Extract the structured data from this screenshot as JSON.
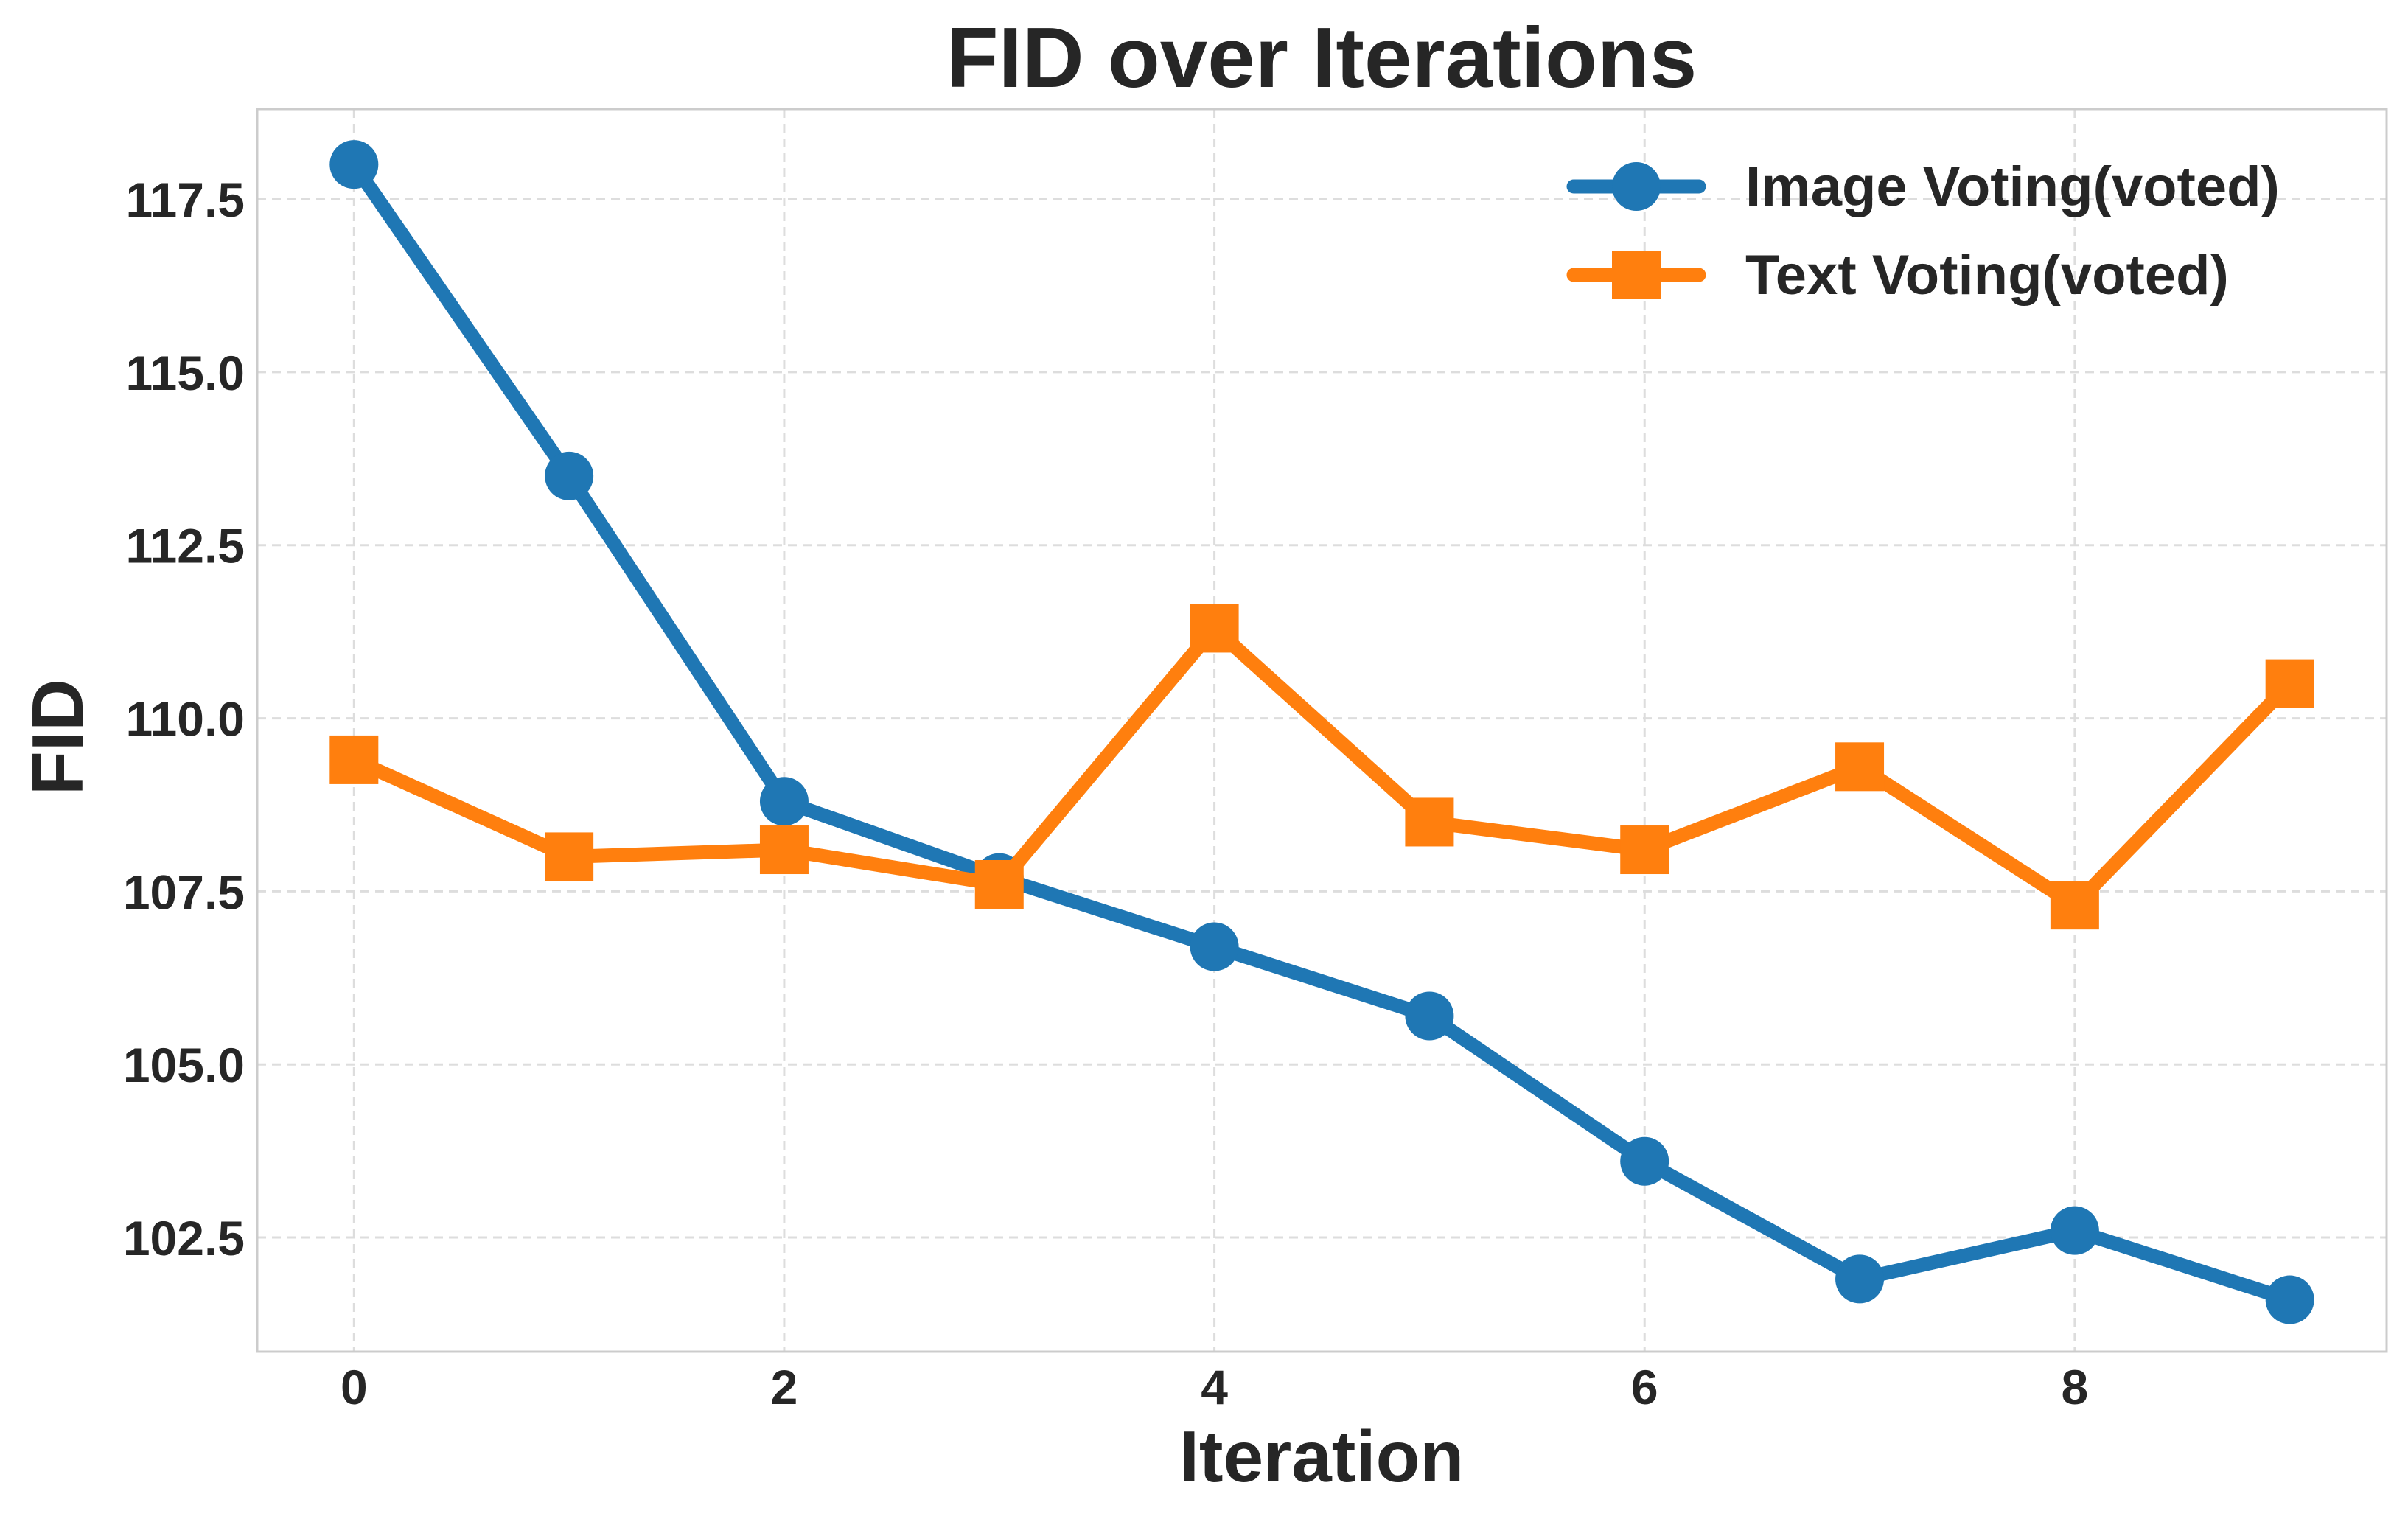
{
  "chart_data": {
    "type": "line",
    "title": "FID over Iterations",
    "xlabel": "Iteration",
    "ylabel": "FID",
    "x": [
      0,
      1,
      2,
      3,
      4,
      5,
      6,
      7,
      8,
      9
    ],
    "xlim": [
      -0.45,
      9.45
    ],
    "ylim": [
      100.85,
      118.8
    ],
    "xticks": [
      0,
      2,
      4,
      6,
      8
    ],
    "xtick_labels": [
      "0",
      "2",
      "4",
      "6",
      "8"
    ],
    "yticks": [
      102.5,
      105.0,
      107.5,
      110.0,
      112.5,
      115.0,
      117.5
    ],
    "ytick_labels": [
      "102.5",
      "105.0",
      "107.5",
      "110.0",
      "112.5",
      "115.0",
      "117.5"
    ],
    "grid": true,
    "legend_position": "top-right",
    "series": [
      {
        "name": "Image Voting(voted)",
        "color": "#1f77b4",
        "marker": "circle",
        "values": [
          118.0,
          113.5,
          108.8,
          107.7,
          106.7,
          105.7,
          103.6,
          101.9,
          102.6,
          101.6
        ]
      },
      {
        "name": "Text Voting(voted)",
        "color": "#ff7f0e",
        "marker": "square",
        "values": [
          109.4,
          108.0,
          108.1,
          107.6,
          111.3,
          108.5,
          108.1,
          109.3,
          107.3,
          110.5
        ]
      }
    ]
  }
}
